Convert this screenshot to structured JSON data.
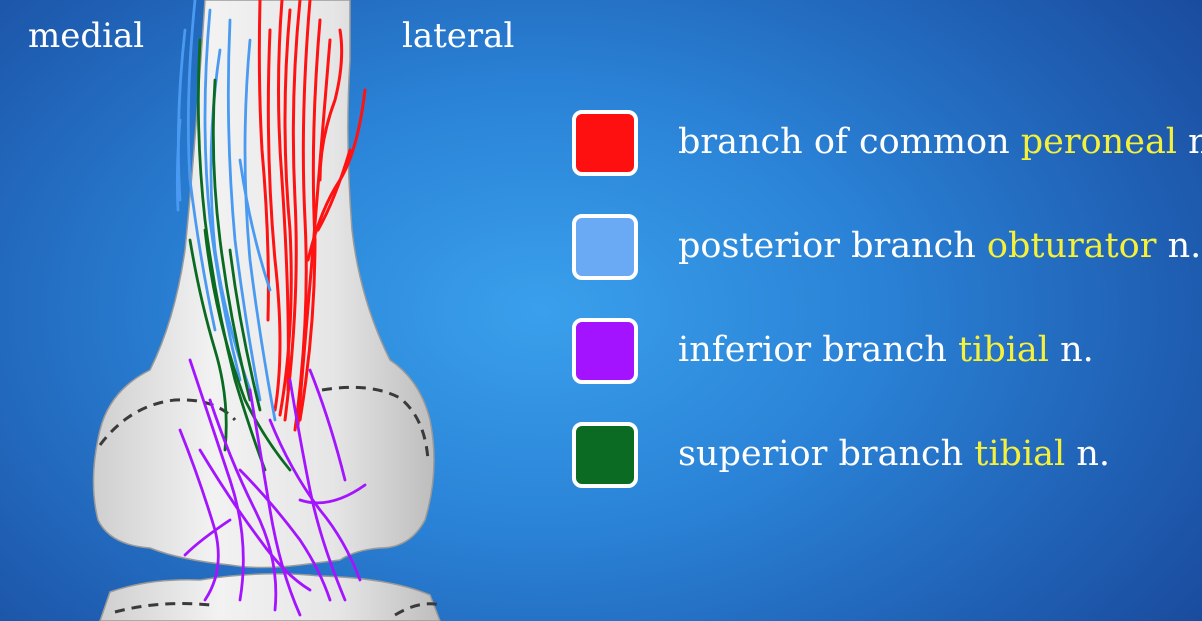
{
  "labels": {
    "medial": "medial",
    "lateral": "lateral"
  },
  "colors": {
    "peroneal": "#ff1010",
    "obturator": "#6aaaf5",
    "tibial_inferior": "#a313ff",
    "tibial_superior": "#0c6b23",
    "highlight": "#f5f03a"
  },
  "legend": [
    {
      "pre": "branch of common ",
      "highlight": "peroneal",
      "post": " n.",
      "color": "#ff1010"
    },
    {
      "pre": "posterior branch ",
      "highlight": "obturator",
      "post": " n.",
      "color": "#6aaaf5"
    },
    {
      "pre": "inferior branch ",
      "highlight": "tibial",
      "post": " n.",
      "color": "#a313ff"
    },
    {
      "pre": "superior branch ",
      "highlight": "tibial",
      "post": " n.",
      "color": "#0c6b23"
    }
  ]
}
